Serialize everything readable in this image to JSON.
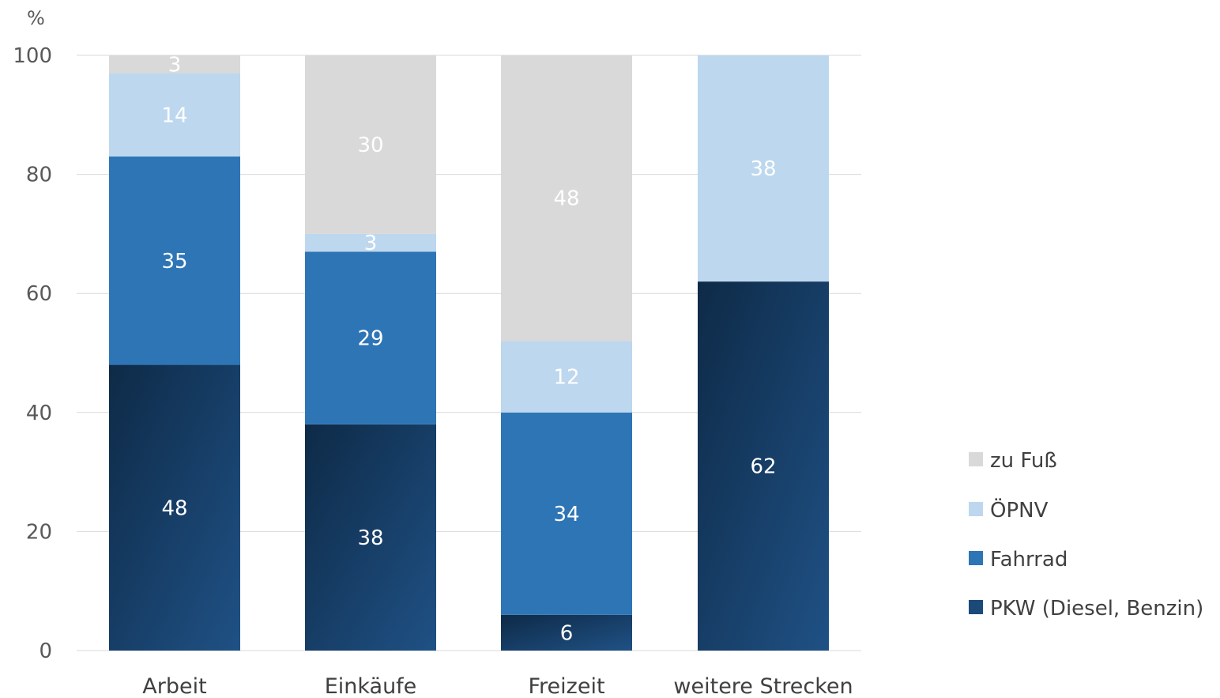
{
  "chart_data": {
    "type": "bar",
    "stacked": true,
    "ylabel": "%",
    "ylim": [
      0,
      100
    ],
    "yticks": [
      0,
      20,
      40,
      60,
      80,
      100
    ],
    "grid": true,
    "legend_position": "right",
    "categories": [
      "Arbeit",
      "Einkäufe",
      "Freizeit",
      "weitere Strecken"
    ],
    "series": [
      {
        "name": "PKW (Diesel, Benzin)",
        "color": "#1b4a78",
        "values": [
          48,
          38,
          6,
          62
        ]
      },
      {
        "name": "Fahrrad",
        "color": "#2e75b6",
        "values": [
          35,
          29,
          34,
          0
        ]
      },
      {
        "name": "ÖPNV",
        "color": "#bdd7ee",
        "values": [
          14,
          3,
          12,
          38
        ]
      },
      {
        "name": "zu Fuß",
        "color": "#d9d9d9",
        "values": [
          3,
          30,
          48,
          0
        ]
      }
    ]
  }
}
